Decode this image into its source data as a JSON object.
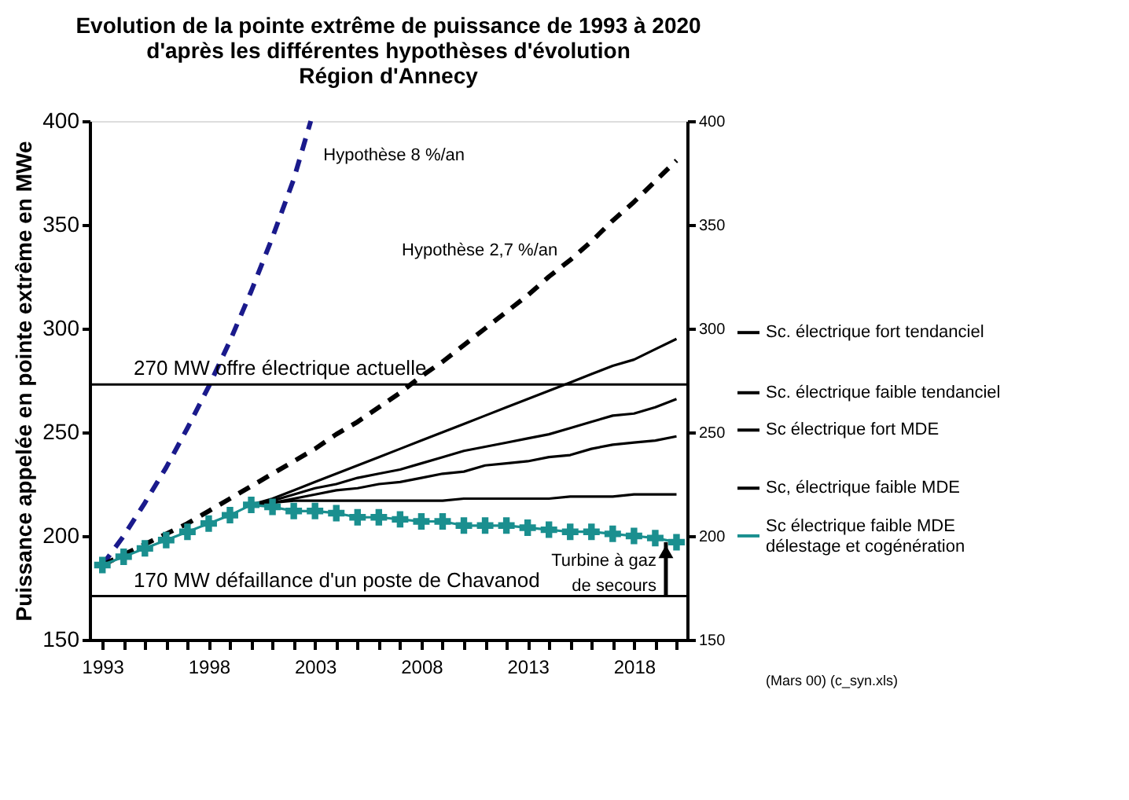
{
  "chart_data": {
    "type": "line",
    "title": "Evolution de la pointe extrême de puissance de 1993 à 2020\nd'après les différentes hypothèses d'évolution\nRégion d'Annecy",
    "ylabel": "Puissance appelée en pointe extrême en MWe",
    "xlim": [
      1992.4,
      2020.5
    ],
    "ylim": [
      150,
      400
    ],
    "yticks": [
      150,
      200,
      250,
      300,
      350,
      400
    ],
    "y2lim": [
      150,
      400
    ],
    "y2ticks": [
      150,
      200,
      250,
      300,
      350,
      400
    ],
    "xticks": [
      1993,
      {
        "value": 1994,
        "label": null
      },
      {
        "value": 1995,
        "label": null
      },
      {
        "value": 1996,
        "label": null
      },
      {
        "value": 1997,
        "label": null
      },
      1998,
      {
        "value": 1999,
        "label": null
      },
      {
        "value": 2000,
        "label": null
      },
      {
        "value": 2001,
        "label": null
      },
      {
        "value": 2002,
        "label": null
      },
      2003,
      {
        "value": 2004,
        "label": null
      },
      {
        "value": 2005,
        "label": null
      },
      {
        "value": 2006,
        "label": null
      },
      {
        "value": 2007,
        "label": null
      },
      2008,
      {
        "value": 2009,
        "label": null
      },
      {
        "value": 2010,
        "label": null
      },
      {
        "value": 2011,
        "label": null
      },
      {
        "value": 2012,
        "label": null
      },
      2013,
      {
        "value": 2014,
        "label": null
      },
      {
        "value": 2015,
        "label": null
      },
      {
        "value": 2016,
        "label": null
      },
      {
        "value": 2017,
        "label": null
      },
      2018,
      {
        "value": 2019,
        "label": null
      },
      {
        "value": 2020,
        "label": null
      }
    ],
    "grid": false,
    "legend": "right",
    "series": [
      {
        "name": "Hypothèse 8 %/an",
        "color": "#1a1a8c",
        "line_style": "dashed",
        "marker": "none",
        "x": [
          1993,
          1994,
          1995,
          1996,
          1997,
          1998,
          1999,
          2000,
          2001,
          2002,
          2002.8
        ],
        "values": [
          186,
          200,
          216,
          233,
          252,
          272,
          294,
          318,
          344,
          372,
          400
        ]
      },
      {
        "name": "Hypothèse 2,7 %/an",
        "color": "#000000",
        "line_style": "dashed",
        "marker": "none",
        "x": [
          1993,
          1994,
          1995,
          1996,
          1997,
          1998,
          1999,
          2000,
          2001,
          2002,
          2003,
          2004,
          2005,
          2006,
          2007,
          2008,
          2009,
          2010,
          2011,
          2012,
          2013,
          2014,
          2015,
          2016,
          2017,
          2018,
          2019,
          2020
        ],
        "values": [
          186,
          191,
          196,
          201,
          206,
          212,
          218,
          224,
          230,
          236,
          242,
          249,
          255,
          262,
          269,
          277,
          284,
          292,
          300,
          308,
          316,
          325,
          333,
          342,
          352,
          361,
          371,
          381
        ]
      },
      {
        "name": "Sc. électrique fort tendanciel",
        "color": "#000000",
        "line_style": "solid",
        "marker": "none",
        "x": [
          2000,
          2001,
          2002,
          2003,
          2004,
          2005,
          2006,
          2007,
          2008,
          2009,
          2010,
          2011,
          2012,
          2013,
          2014,
          2015,
          2016,
          2017,
          2018,
          2019,
          2020
        ],
        "values": [
          215,
          218,
          222,
          226,
          230,
          234,
          238,
          242,
          246,
          250,
          254,
          258,
          262,
          266,
          270,
          274,
          278,
          282,
          285,
          290,
          295
        ]
      },
      {
        "name": "Sc. électrique faible tendanciel",
        "color": "#000000",
        "line_style": "solid",
        "marker": "none",
        "x": [
          2000,
          2001,
          2002,
          2003,
          2004,
          2005,
          2006,
          2007,
          2008,
          2009,
          2010,
          2011,
          2012,
          2013,
          2014,
          2015,
          2016,
          2017,
          2018,
          2019,
          2020
        ],
        "values": [
          215,
          217,
          220,
          223,
          225,
          228,
          230,
          232,
          235,
          238,
          241,
          243,
          245,
          247,
          249,
          252,
          255,
          258,
          259,
          262,
          266
        ]
      },
      {
        "name": "Sc électrique fort MDE",
        "color": "#000000",
        "line_style": "solid",
        "marker": "none",
        "x": [
          2000,
          2001,
          2002,
          2003,
          2004,
          2005,
          2006,
          2007,
          2008,
          2009,
          2010,
          2011,
          2012,
          2013,
          2014,
          2015,
          2016,
          2017,
          2018,
          2019,
          2020
        ],
        "values": [
          215,
          216,
          218,
          220,
          222,
          223,
          225,
          226,
          228,
          230,
          231,
          234,
          235,
          236,
          238,
          239,
          242,
          244,
          245,
          246,
          248
        ]
      },
      {
        "name": "Sc, électrique faible MDE",
        "color": "#000000",
        "line_style": "solid",
        "marker": "none",
        "x": [
          2000,
          2001,
          2002,
          2003,
          2004,
          2005,
          2006,
          2007,
          2008,
          2009,
          2010,
          2011,
          2012,
          2013,
          2014,
          2015,
          2016,
          2017,
          2018,
          2019,
          2020
        ],
        "values": [
          215,
          216,
          217,
          217,
          217,
          217,
          217,
          217,
          217,
          217,
          218,
          218,
          218,
          218,
          218,
          219,
          219,
          219,
          220,
          220,
          220
        ]
      },
      {
        "name": "Sc électrique faible MDE délestage et cogénération",
        "color": "#1a8f8f",
        "line_style": "solid",
        "marker": "cross",
        "x": [
          1993,
          1994,
          1995,
          1996,
          1997,
          1998,
          1999,
          2000,
          2001,
          2002,
          2003,
          2004,
          2005,
          2006,
          2007,
          2008,
          2009,
          2010,
          2011,
          2012,
          2013,
          2014,
          2015,
          2016,
          2017,
          2018,
          2019,
          2020
        ],
        "values": [
          186,
          190,
          194,
          198,
          202,
          206,
          210,
          215,
          214,
          212,
          212,
          211,
          209,
          209,
          208,
          207,
          207,
          205,
          205,
          205,
          204,
          203,
          202,
          202,
          201,
          200,
          199,
          197
        ]
      }
    ],
    "ref_lines": [
      {
        "axis": "y",
        "value": 273,
        "label": "270 MW offre électrique actuelle",
        "color": "#000000"
      },
      {
        "axis": "y",
        "value": 171,
        "label": "170 MW défaillance d'un poste de Chavanod",
        "color": "#000000"
      }
    ],
    "annotations": [
      {
        "text": "Turbine à gaz de secours",
        "x": 2019.5,
        "y": 197
      },
      "(Mars 00) (c_syn.xls)"
    ]
  }
}
